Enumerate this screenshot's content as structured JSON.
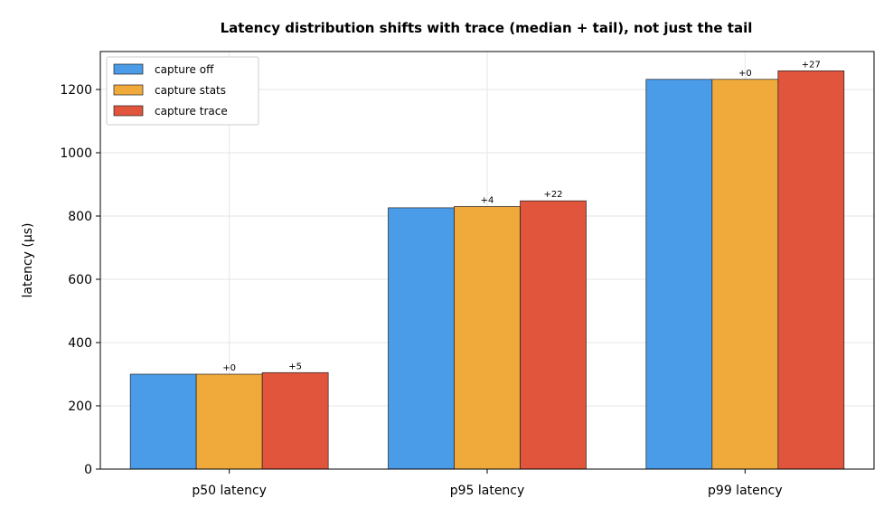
{
  "chart_data": {
    "type": "bar",
    "title": "Latency distribution shifts with trace (median + tail), not just the tail",
    "xlabel": "",
    "ylabel": "latency (µs)",
    "ylim": [
      0,
      1320
    ],
    "yticks": [
      0,
      200,
      400,
      600,
      800,
      1000,
      1200
    ],
    "grid": true,
    "legend_position": "top-left",
    "categories": [
      "p50 latency",
      "p95 latency",
      "p99 latency"
    ],
    "series": [
      {
        "name": "capture off",
        "color": "#4a9be8",
        "values": [
          300,
          826,
          1232
        ],
        "labels": [
          "",
          "",
          ""
        ]
      },
      {
        "name": "capture stats",
        "color": "#f0a93b",
        "values": [
          300,
          830,
          1232
        ],
        "labels": [
          "+0",
          "+4",
          "+0"
        ]
      },
      {
        "name": "capture trace",
        "color": "#e0553c",
        "values": [
          305,
          848,
          1259
        ],
        "labels": [
          "+5",
          "+22",
          "+27"
        ]
      }
    ]
  }
}
